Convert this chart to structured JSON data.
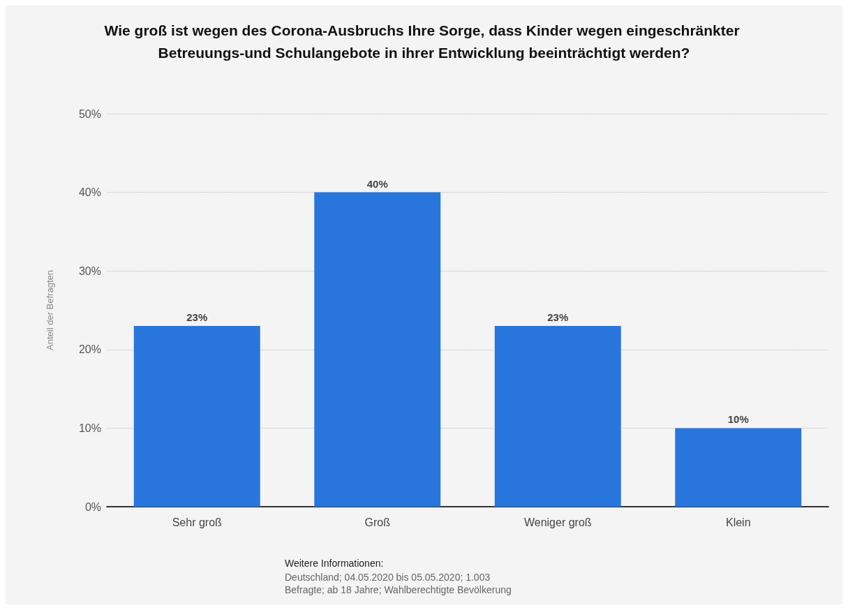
{
  "chart_data": {
    "type": "bar",
    "title": "Wie groß ist wegen des Corona-Ausbruchs Ihre Sorge, dass Kinder wegen eingeschränkter Betreuungs-und Schulangebote in ihrer Entwicklung beeinträchtigt werden?",
    "ylabel": "Anteil der Befragten",
    "categories": [
      "Sehr groß",
      "Groß",
      "Weniger groß",
      "Klein"
    ],
    "values": [
      23,
      40,
      23,
      10
    ],
    "value_labels": [
      "23%",
      "40%",
      "23%",
      "10%"
    ],
    "color": "#2876dd",
    "ylim": [
      0,
      50
    ],
    "yticks": [
      {
        "value": 0,
        "label": "0%"
      },
      {
        "value": 10,
        "label": "10%"
      },
      {
        "value": 20,
        "label": "20%"
      },
      {
        "value": 30,
        "label": "30%"
      },
      {
        "value": 40,
        "label": "40%"
      },
      {
        "value": 50,
        "label": "50%"
      }
    ],
    "grid": "y",
    "annotations": [
      "Weitere Informationen:",
      "Deutschland; 04.05.2020 bis 05.05.2020; 1.003 Befragte; ab 18 Jahre; Wahlberechtigte Bevölkerung"
    ]
  }
}
